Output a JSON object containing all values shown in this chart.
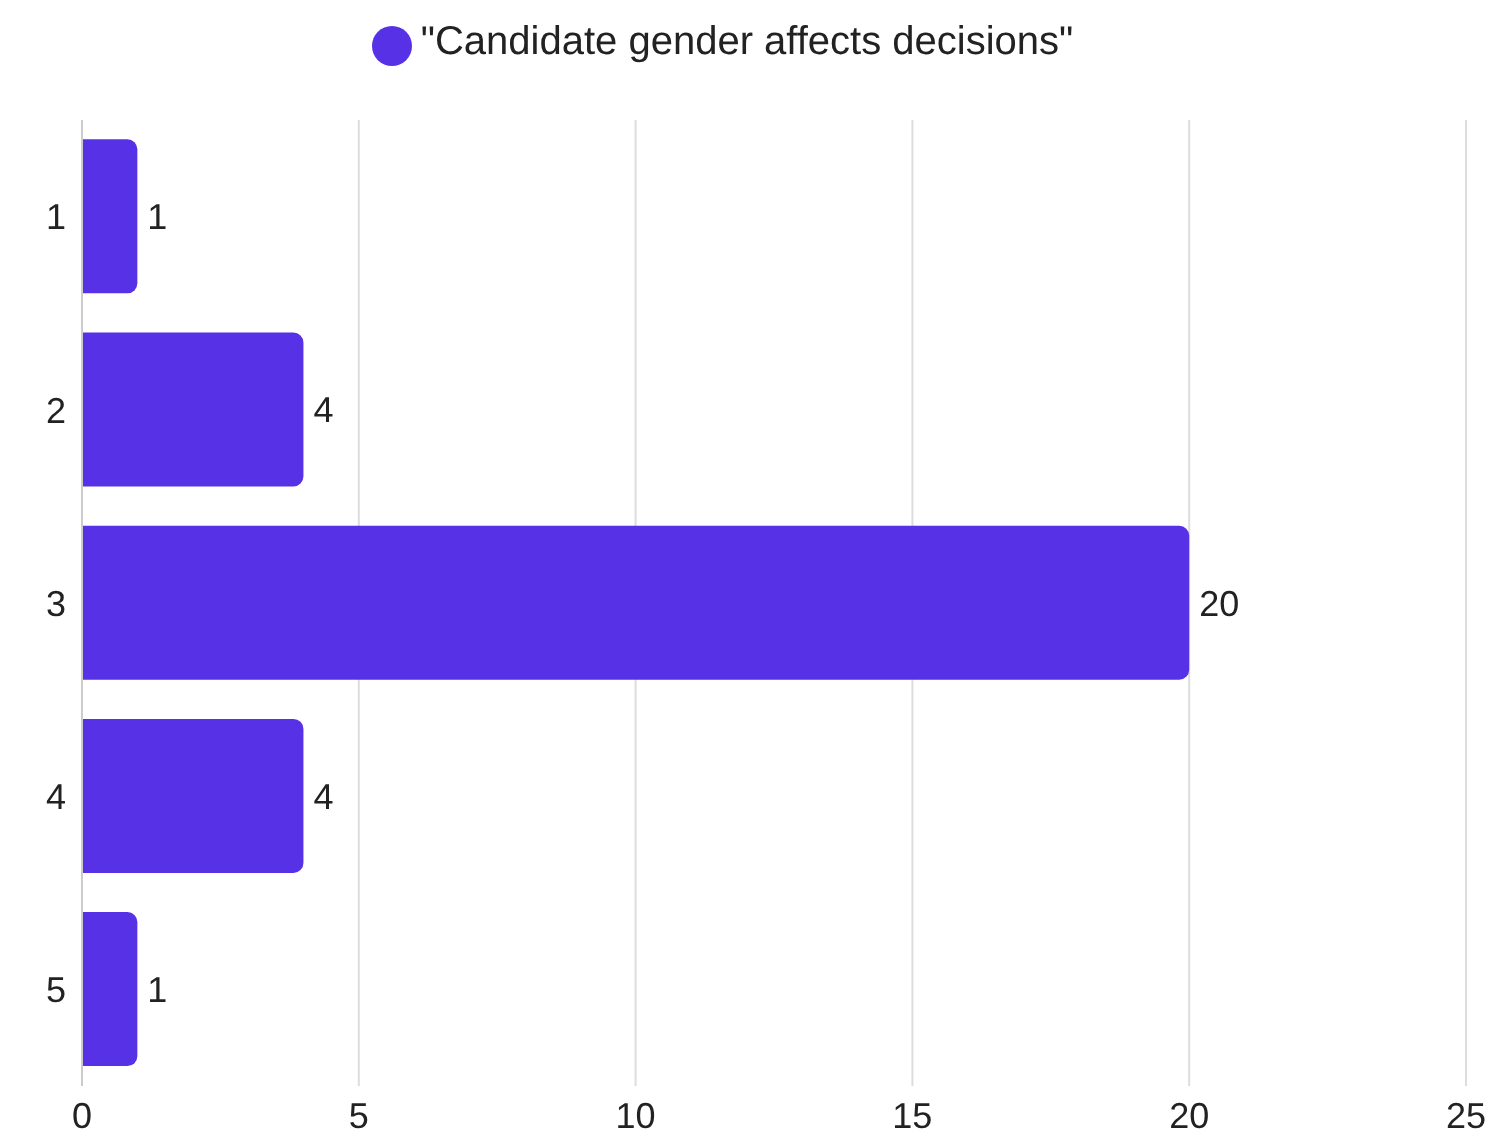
{
  "chart_data": {
    "type": "bar",
    "orientation": "horizontal",
    "categories": [
      "1",
      "2",
      "3",
      "4",
      "5"
    ],
    "series": [
      {
        "name": "\"Candidate gender affects decisions\"",
        "color": "#5631e6",
        "values": [
          1,
          4,
          20,
          4,
          1
        ]
      }
    ],
    "xlim": [
      0,
      25
    ],
    "xticks": [
      0,
      5,
      10,
      15,
      20,
      25
    ],
    "grid": "x",
    "legend": "top",
    "data_labels": true
  }
}
